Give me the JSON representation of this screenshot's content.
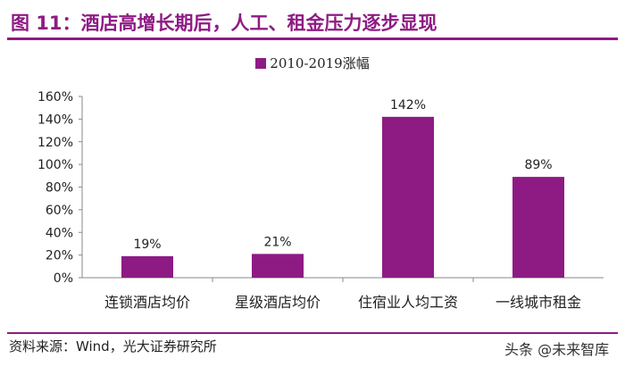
{
  "header": {
    "title": "图 11：酒店高增长期后，人工、租金压力逐步显现"
  },
  "footer": {
    "source": "资料来源：Wind，光大证券研究所"
  },
  "watermark": {
    "text": "头条 @未来智库"
  },
  "chart_data": {
    "type": "bar",
    "title": "",
    "legend": {
      "position": "top",
      "entries": [
        "2010-2019涨幅"
      ]
    },
    "categories": [
      "连锁酒店均价",
      "星级酒店均价",
      "住宿业人均工资",
      "一线城市租金"
    ],
    "series": [
      {
        "name": "2010-2019涨幅",
        "values": [
          19,
          21,
          142,
          89
        ],
        "labels": [
          "19%",
          "21%",
          "142%",
          "89%"
        ],
        "color": "#8e1b84"
      }
    ],
    "yticks": [
      "0%",
      "20%",
      "40%",
      "60%",
      "80%",
      "100%",
      "120%",
      "140%",
      "160%"
    ],
    "ylim": [
      0,
      160
    ],
    "grid": false,
    "xlabel": "",
    "ylabel": ""
  }
}
